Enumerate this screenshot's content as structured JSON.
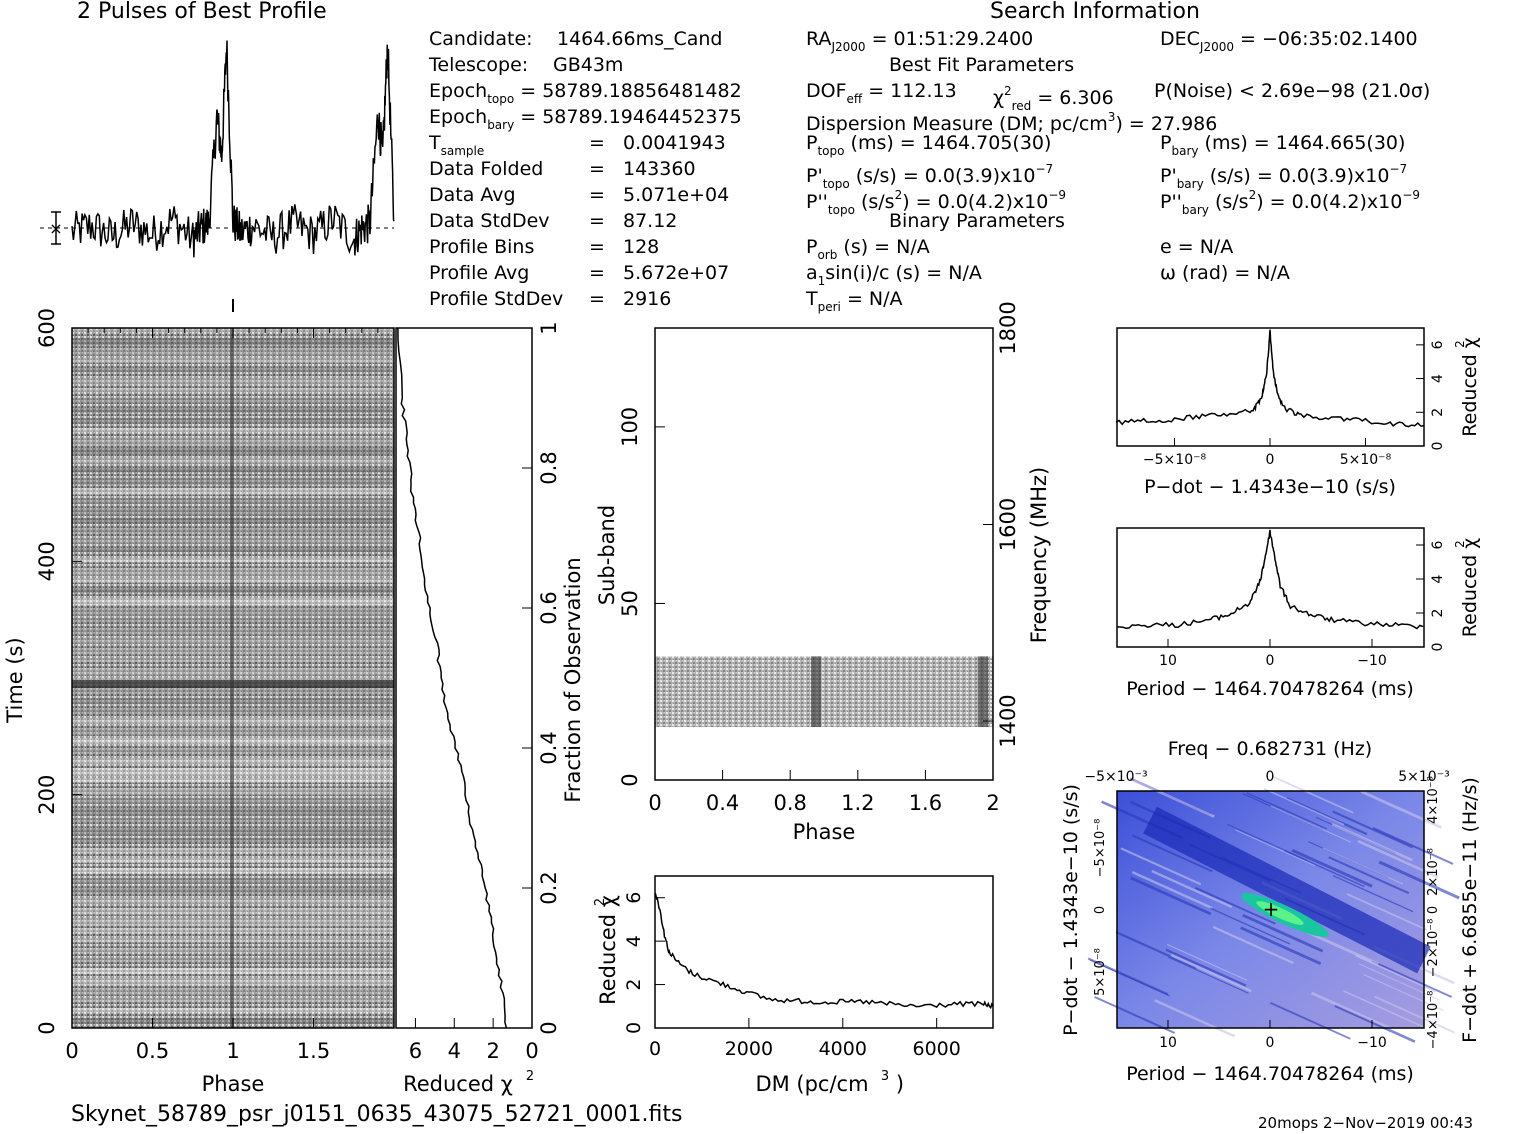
{
  "profile": {
    "title": "2 Pulses of Best Profile"
  },
  "search": {
    "header": "Search Information",
    "candidate_label": "Candidate:",
    "candidate": "1464.66ms_Cand",
    "telescope_label": "Telescope:",
    "telescope": "GB43m",
    "epoch_topo_label": "Epoch",
    "epoch_topo_sub": "topo",
    "epoch_topo": "= 58789.18856481482",
    "epoch_bary_label": "Epoch",
    "epoch_bary_sub": "bary",
    "epoch_bary": "= 58789.19464452375",
    "tsample_label": "T",
    "tsample_sub": "sample",
    "tsample": "0.0041943",
    "rows": [
      {
        "label": "Data Folded",
        "value": "143360"
      },
      {
        "label": "Data Avg",
        "value": "5.071e+04"
      },
      {
        "label": "Data StdDev",
        "value": "87.12"
      },
      {
        "label": "Profile Bins",
        "value": "128"
      },
      {
        "label": "Profile Avg",
        "value": "5.672e+07"
      },
      {
        "label": "Profile StdDev",
        "value": "2916"
      }
    ],
    "eq": "=",
    "ra_label": "RA",
    "ra_sub": "J2000",
    "ra": "= 01:51:29.2400",
    "dec_label": "DEC",
    "dec_sub": "J2000",
    "dec": "= −06:35:02.1400",
    "best_fit_header": "Best Fit Parameters",
    "dof_label": "DOF",
    "dof_sub": "eff",
    "dof": "= 112.13",
    "chi_label": "χ",
    "chi_sup": "2",
    "chi_sub": "red",
    "chi": "= 6.306",
    "pnoise": "P(Noise) < 2.69e−98   (21.0σ)",
    "dm_line": "Dispersion Measure (DM; pc/cm",
    "dm_sup": "3",
    "dm_val": ") = 27.986",
    "ptopo_sub": "topo",
    "ptopo": "(ms)  =   1464.705(30)",
    "pbary_sub": "bary",
    "pbary": "(ms)  =   1464.665(30)",
    "pdtopo": "(s/s) = 0.0(3.9)x10",
    "pdtopo_exp": "−7",
    "pdbary": "(s/s) = 0.0(3.9)x10",
    "pdbary_exp": "−7",
    "pddtopo": "(s/s",
    "pddtopo_end": ") = 0.0(4.2)x10",
    "pddtopo_exp": "−9",
    "pddbary": "(s/s",
    "pddbary_end": ") = 0.0(4.2)x10",
    "pddbary_exp": "−9",
    "binary_header": "Binary Parameters",
    "porb_sub": "orb",
    "porb": "(s) = N/A",
    "ecc": "e = N/A",
    "a1": "a",
    "a1_sub": "1",
    "a1_rest": "sin(i)/c (s) = N/A",
    "omega": "ω  (rad) = N/A",
    "tperi_sub": "peri",
    "tperi": "= N/A"
  },
  "footer": {
    "filename": "Skynet_58789_psr_j0151_0635_43075_52721_0001.fits",
    "stamp": "20mops   2−Nov−2019 00:43"
  },
  "chart_data": [
    {
      "type": "line",
      "name": "profile",
      "x": [
        0,
        0.125,
        0.25,
        0.375,
        0.5,
        0.625,
        0.75,
        0.8,
        0.85,
        0.9,
        0.93,
        0.96,
        1.0,
        1.05,
        1.125,
        1.25,
        1.375,
        1.5,
        1.625,
        1.75,
        1.8,
        1.85,
        1.9,
        1.93,
        1.96,
        2.0
      ],
      "values": [
        -0.1,
        0.05,
        -0.2,
        0.1,
        -0.15,
        0.2,
        -0.25,
        0.0,
        0.1,
        2.5,
        1.6,
        4.1,
        0.15,
        -0.1,
        0.05,
        -0.2,
        0.1,
        -0.15,
        0.2,
        -0.25,
        0.0,
        0.1,
        2.5,
        1.6,
        4.1,
        0.15
      ]
    },
    {
      "type": "heatmap",
      "name": "time-phase",
      "title": "",
      "xlabel": "Phase",
      "ylabel": "Time (s)",
      "xlim": [
        0,
        2
      ],
      "ylim": [
        0,
        600
      ],
      "xticks": [
        "0",
        "0.5",
        "1",
        "1.5"
      ],
      "yticks": [
        "0",
        "200",
        "400",
        "600"
      ],
      "colormap": "grayscale"
    },
    {
      "type": "line",
      "name": "time-chi2",
      "xlabel": "Reduced χ",
      "xlabel_sup": "2",
      "ylabel": "Fraction of Observation",
      "xlim": [
        7,
        0
      ],
      "ylim": [
        0,
        1
      ],
      "xticks": [
        "6",
        "4",
        "2",
        "0"
      ],
      "yticks": [
        "0",
        "0.2",
        "0.4",
        "0.6",
        "0.8",
        "1"
      ],
      "x": [
        1.3,
        1.5,
        1.8,
        2.1,
        2.4,
        2.8,
        3.2,
        3.5,
        3.9,
        4.4,
        4.7,
        4.9,
        5.3,
        5.6,
        5.8,
        6.1,
        6.3,
        6.5,
        6.7,
        6.9
      ],
      "y": [
        0.0,
        0.05,
        0.1,
        0.15,
        0.2,
        0.25,
        0.3,
        0.35,
        0.4,
        0.45,
        0.5,
        0.55,
        0.6,
        0.65,
        0.7,
        0.75,
        0.8,
        0.85,
        0.9,
        1.0
      ]
    },
    {
      "type": "heatmap",
      "name": "subband-phase",
      "xlabel": "Phase",
      "ylabel": "Sub-band",
      "y2label": "Frequency (MHz)",
      "xlim": [
        0,
        2
      ],
      "ylim": [
        0,
        128
      ],
      "xticks": [
        "0",
        "0.4",
        "0.8",
        "1.2",
        "1.6",
        "2"
      ],
      "yticks": [
        "0",
        "50",
        "100"
      ],
      "y2ticks": [
        "1400",
        "1600",
        "1800"
      ],
      "band_subbands": [
        15,
        35
      ],
      "colormap": "grayscale"
    },
    {
      "type": "line",
      "name": "dm-chi2",
      "xlabel": "DM (pc/cm",
      "xlabel_sup": "3",
      "xlabel_end": ")",
      "ylabel": "Reduced χ",
      "ylabel_sup": "2",
      "xlim": [
        0,
        7200
      ],
      "ylim": [
        0,
        7
      ],
      "xticks": [
        "0",
        "2000",
        "4000",
        "6000"
      ],
      "yticks": [
        "0",
        "2",
        "4",
        "6"
      ],
      "x": [
        0,
        100,
        200,
        300,
        500,
        800,
        1200,
        1600,
        2000,
        2500,
        3000,
        3500,
        4000,
        4500,
        5000,
        5500,
        6000,
        6500,
        7000,
        7200
      ],
      "y": [
        6.3,
        5.5,
        4.3,
        3.5,
        3.0,
        2.5,
        2.2,
        1.9,
        1.6,
        1.3,
        1.25,
        1.2,
        1.2,
        1.2,
        1.1,
        1.0,
        1.05,
        1.1,
        1.1,
        1.0
      ]
    },
    {
      "type": "line",
      "name": "pdot-chi2",
      "xlabel": "P−dot − 1.4343e−10 (s/s)",
      "ylabel": "Reduced χ",
      "ylabel_sup": "2",
      "xticks": [
        "5×10⁻⁸",
        "0",
        "−5×10⁻⁸"
      ],
      "yticks": [
        "0",
        "2",
        "4",
        "6"
      ],
      "x": [
        1.0,
        0.8,
        0.6,
        0.4,
        0.2,
        0.1,
        0.05,
        0.02,
        0.0,
        -0.02,
        -0.05,
        -0.1,
        -0.2,
        -0.4,
        -0.6,
        -0.8,
        -1.0
      ],
      "y": [
        1.2,
        1.3,
        1.5,
        1.6,
        1.8,
        2.2,
        3.0,
        4.5,
        6.8,
        4.5,
        3.0,
        2.2,
        1.9,
        1.8,
        1.6,
        1.5,
        1.4
      ]
    },
    {
      "type": "line",
      "name": "period-chi2",
      "xlabel": "Period − 1464.70478264 (ms)",
      "ylabel": "Reduced χ",
      "ylabel_sup": "2",
      "xlim": [
        15,
        -15
      ],
      "xticks": [
        "10",
        "0",
        "−10"
      ],
      "yticks": [
        "0",
        "2",
        "4",
        "6"
      ],
      "x": [
        15,
        12,
        9,
        6,
        4,
        2,
        1,
        0.5,
        0,
        -0.5,
        -1,
        -2,
        -4,
        -6,
        -9,
        -12,
        -15
      ],
      "y": [
        1.2,
        1.3,
        1.3,
        1.6,
        1.9,
        2.6,
        3.8,
        5.2,
        6.8,
        5.2,
        3.6,
        2.4,
        1.9,
        1.6,
        1.4,
        1.3,
        1.2
      ]
    },
    {
      "type": "heatmap",
      "name": "period-pdot",
      "title": "Freq − 0.682731 (Hz)",
      "xlabel": "Period − 1464.70478264 (ms)",
      "ylabel": "P−dot − 1.4343e−10 (s/s)",
      "y2label": "F−dot + 6.6855e−11 (Hz/s)",
      "xticks": [
        "10",
        "0",
        "−10"
      ],
      "x2ticks": [
        "−5×10⁻³",
        "0",
        "5×10⁻³"
      ],
      "yticks": [
        "−5×10⁻⁸",
        "0",
        "5×10⁻⁸"
      ],
      "y2ticks": [
        "4×10⁻⁸",
        "2×10⁻⁸",
        "0",
        "−2×10⁻⁸",
        "−4×10⁻⁸"
      ],
      "colormap": "blue-green"
    }
  ]
}
